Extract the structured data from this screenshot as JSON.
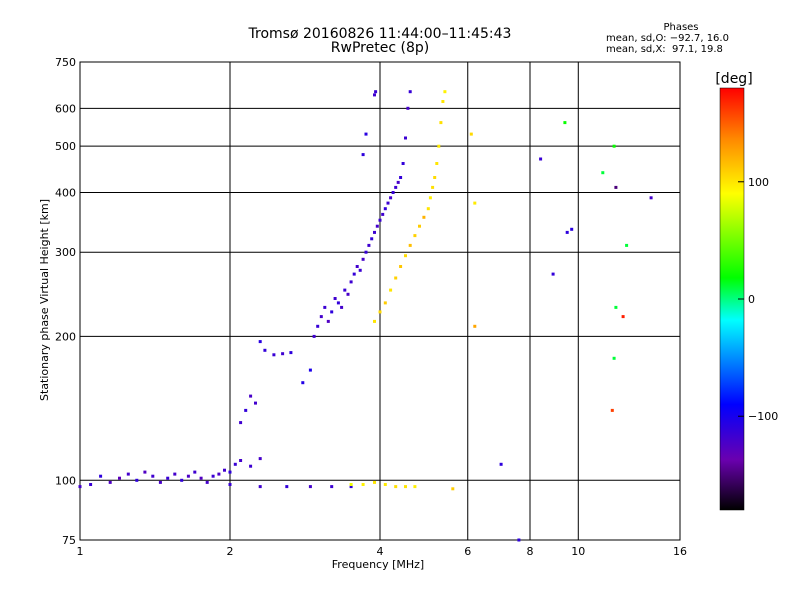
{
  "title": {
    "line1": "Tromsø 20160826 11:44:00–11:45:43",
    "line2": "RwPretec (8p)"
  },
  "stats": {
    "header": "Phases",
    "o_line": "mean, sd,O: −92.7, 16.0",
    "x_line": "mean, sd,X:  97.1, 19.8"
  },
  "chart_data": {
    "type": "scatter",
    "xlabel": "Frequency [MHz]",
    "ylabel": "Stationary phase Virtual Height [km]",
    "xscale": "log",
    "yscale": "log",
    "xlim": [
      1,
      16
    ],
    "ylim": [
      75,
      750
    ],
    "xticks": [
      1,
      2,
      4,
      6,
      8,
      10,
      16
    ],
    "yticks": [
      75,
      100,
      200,
      300,
      400,
      500,
      600,
      750
    ],
    "grid": true,
    "colorbar": {
      "label": "[deg]",
      "range": [
        -180,
        180
      ],
      "ticks": [
        100,
        0,
        -100
      ]
    },
    "series": [
      {
        "points": [
          [
            1.0,
            97,
            -120
          ],
          [
            1.05,
            98,
            -115
          ],
          [
            1.1,
            102,
            -110
          ],
          [
            1.15,
            99,
            -125
          ],
          [
            1.2,
            101,
            -130
          ],
          [
            1.25,
            103,
            -120
          ],
          [
            1.3,
            100,
            -110
          ],
          [
            1.35,
            104,
            -125
          ],
          [
            1.4,
            102,
            -118
          ],
          [
            1.45,
            99,
            -122
          ],
          [
            1.5,
            101,
            -115
          ],
          [
            1.55,
            103,
            -120
          ],
          [
            1.6,
            100,
            -112
          ],
          [
            1.65,
            102,
            -124
          ],
          [
            1.7,
            104,
            -118
          ],
          [
            1.75,
            101,
            -126
          ],
          [
            1.8,
            99,
            -121
          ],
          [
            1.85,
            102,
            -116
          ],
          [
            1.9,
            103,
            -123
          ],
          [
            1.95,
            105,
            -119
          ],
          [
            2.0,
            104,
            -110
          ],
          [
            2.05,
            108,
            -115
          ],
          [
            2.1,
            110,
            -120
          ],
          [
            2.2,
            107,
            -117
          ],
          [
            2.3,
            111,
            -121
          ],
          [
            2.1,
            132,
            -118
          ],
          [
            2.15,
            140,
            -112
          ],
          [
            2.2,
            150,
            -122
          ],
          [
            2.25,
            145,
            -119
          ],
          [
            2.3,
            195,
            -108
          ],
          [
            2.35,
            187,
            -112
          ],
          [
            2.45,
            183,
            -115
          ],
          [
            2.55,
            184,
            -118
          ],
          [
            2.65,
            185,
            -110
          ],
          [
            2.8,
            160,
            -105
          ],
          [
            2.9,
            170,
            -102
          ],
          [
            2.95,
            200,
            -118
          ],
          [
            3.0,
            210,
            -114
          ],
          [
            3.05,
            220,
            -120
          ],
          [
            3.1,
            230,
            -116
          ],
          [
            3.15,
            215,
            -125
          ],
          [
            3.2,
            225,
            -110
          ],
          [
            3.25,
            240,
            -118
          ],
          [
            3.3,
            235,
            -112
          ],
          [
            3.35,
            230,
            -120
          ],
          [
            3.4,
            250,
            -115
          ],
          [
            3.45,
            245,
            -122
          ],
          [
            3.5,
            260,
            -117
          ],
          [
            3.55,
            270,
            -113
          ],
          [
            3.6,
            280,
            -119
          ],
          [
            3.65,
            275,
            -116
          ],
          [
            3.7,
            290,
            -121
          ],
          [
            3.75,
            300,
            -114
          ],
          [
            3.8,
            310,
            -118
          ],
          [
            3.85,
            320,
            -112
          ],
          [
            3.9,
            330,
            -117
          ],
          [
            3.95,
            340,
            -120
          ],
          [
            4.0,
            350,
            -115
          ],
          [
            4.05,
            360,
            -118
          ],
          [
            4.1,
            370,
            -112
          ],
          [
            4.15,
            380,
            -116
          ],
          [
            4.2,
            390,
            -119
          ],
          [
            4.25,
            400,
            -114
          ],
          [
            4.3,
            410,
            -117
          ],
          [
            4.35,
            420,
            -121
          ],
          [
            4.4,
            430,
            -113
          ],
          [
            3.7,
            480,
            -110
          ],
          [
            3.75,
            530,
            -108
          ],
          [
            3.9,
            640,
            -118
          ],
          [
            3.92,
            650,
            -115
          ],
          [
            4.45,
            460,
            -112
          ],
          [
            4.5,
            520,
            -116
          ],
          [
            4.55,
            600,
            -120
          ],
          [
            4.6,
            650,
            -114
          ],
          [
            2.0,
            98,
            -115
          ],
          [
            2.3,
            97,
            -118
          ],
          [
            2.6,
            97,
            -112
          ],
          [
            2.9,
            97,
            -120
          ],
          [
            3.2,
            97,
            -116
          ],
          [
            3.5,
            97,
            -110
          ]
        ]
      },
      {
        "points": [
          [
            3.9,
            215,
            100
          ],
          [
            4.0,
            225,
            105
          ],
          [
            4.1,
            235,
            110
          ],
          [
            4.2,
            250,
            100
          ],
          [
            4.3,
            265,
            108
          ],
          [
            4.4,
            280,
            112
          ],
          [
            4.5,
            295,
            104
          ],
          [
            4.6,
            310,
            115
          ],
          [
            4.7,
            325,
            108
          ],
          [
            4.8,
            340,
            110
          ],
          [
            4.9,
            355,
            120
          ],
          [
            5.0,
            370,
            100
          ],
          [
            5.05,
            390,
            96
          ],
          [
            5.1,
            410,
            102
          ],
          [
            5.15,
            430,
            104
          ],
          [
            5.2,
            460,
            100
          ],
          [
            5.25,
            500,
            98
          ],
          [
            5.3,
            560,
            102
          ],
          [
            5.35,
            620,
            100
          ],
          [
            5.4,
            650,
            95
          ],
          [
            3.5,
            98,
            85
          ],
          [
            3.7,
            98,
            95
          ],
          [
            3.9,
            99,
            100
          ],
          [
            4.1,
            98,
            98
          ],
          [
            4.3,
            97,
            102
          ],
          [
            4.5,
            97,
            100
          ],
          [
            4.7,
            97,
            96
          ],
          [
            5.6,
            96,
            110
          ],
          [
            6.1,
            530,
            105
          ],
          [
            6.2,
            380,
            98
          ],
          [
            6.2,
            210,
            125
          ],
          [
            7.0,
            108,
            -110
          ],
          [
            7.6,
            75,
            -110
          ],
          [
            8.4,
            470,
            -115
          ],
          [
            8.9,
            270,
            -112
          ],
          [
            9.4,
            560,
            20
          ],
          [
            9.5,
            330,
            -110
          ],
          [
            9.7,
            335,
            -108
          ],
          [
            11.2,
            440,
            10
          ],
          [
            11.8,
            500,
            20
          ],
          [
            11.9,
            410,
            -150
          ],
          [
            11.9,
            230,
            10
          ],
          [
            11.8,
            180,
            10
          ],
          [
            11.7,
            140,
            160
          ],
          [
            12.5,
            310,
            10
          ],
          [
            12.3,
            220,
            170
          ],
          [
            14.0,
            390,
            -120
          ]
        ]
      }
    ]
  }
}
